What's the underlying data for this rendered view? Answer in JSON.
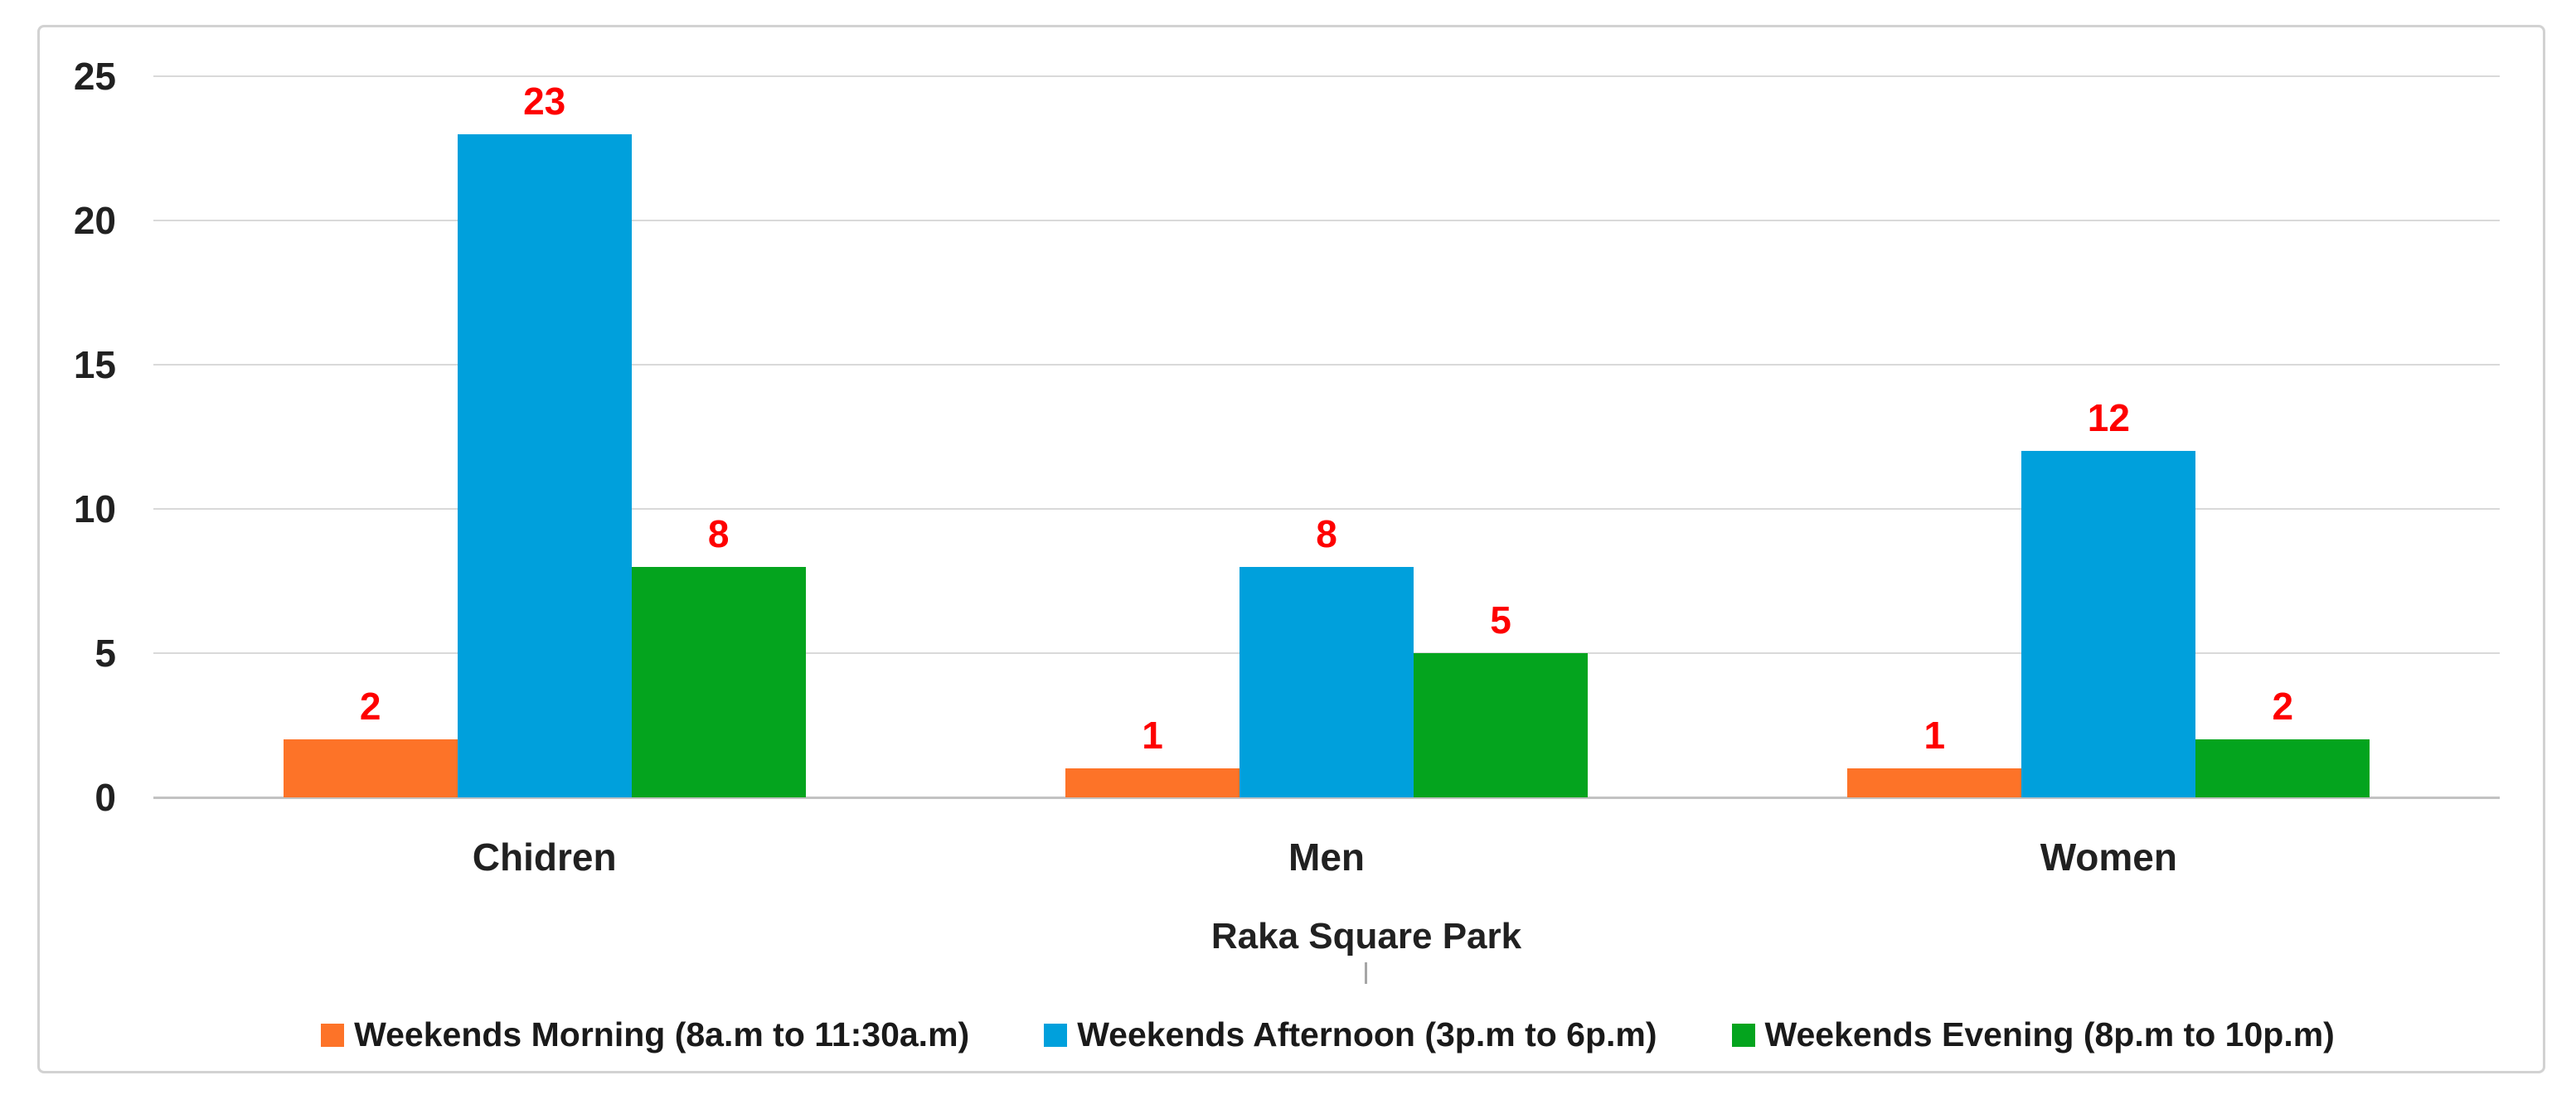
{
  "chart_data": {
    "type": "bar",
    "title": "",
    "categories": [
      "Chidren",
      "Men",
      "Women"
    ],
    "series": [
      {
        "name": "Weekends Morning (8a.m to 11:30a.m)",
        "color": "#fd7328",
        "values": [
          2,
          1,
          1
        ]
      },
      {
        "name": "Weekends Afternoon (3p.m to 6p.m)",
        "color": "#00a0dc",
        "values": [
          23,
          8,
          12
        ]
      },
      {
        "name": "Weekends Evening (8p.m to 10p.m)",
        "color": "#04a41e",
        "values": [
          8,
          5,
          2
        ]
      }
    ],
    "xlabel": "Raka Square Park",
    "ylabel": "",
    "ylim": [
      0,
      25
    ],
    "yticks": [
      0,
      5,
      10,
      15,
      20,
      25
    ],
    "grid": true,
    "legend_position": "bottom",
    "data_labels_shown": true,
    "data_label_color": "#fe0000"
  },
  "colors": {
    "frame_border": "#d2d2d2",
    "gridline": "#d9d9d9",
    "axis_line": "#c2c2c2",
    "text": "#212121",
    "background": "#ffffff"
  }
}
